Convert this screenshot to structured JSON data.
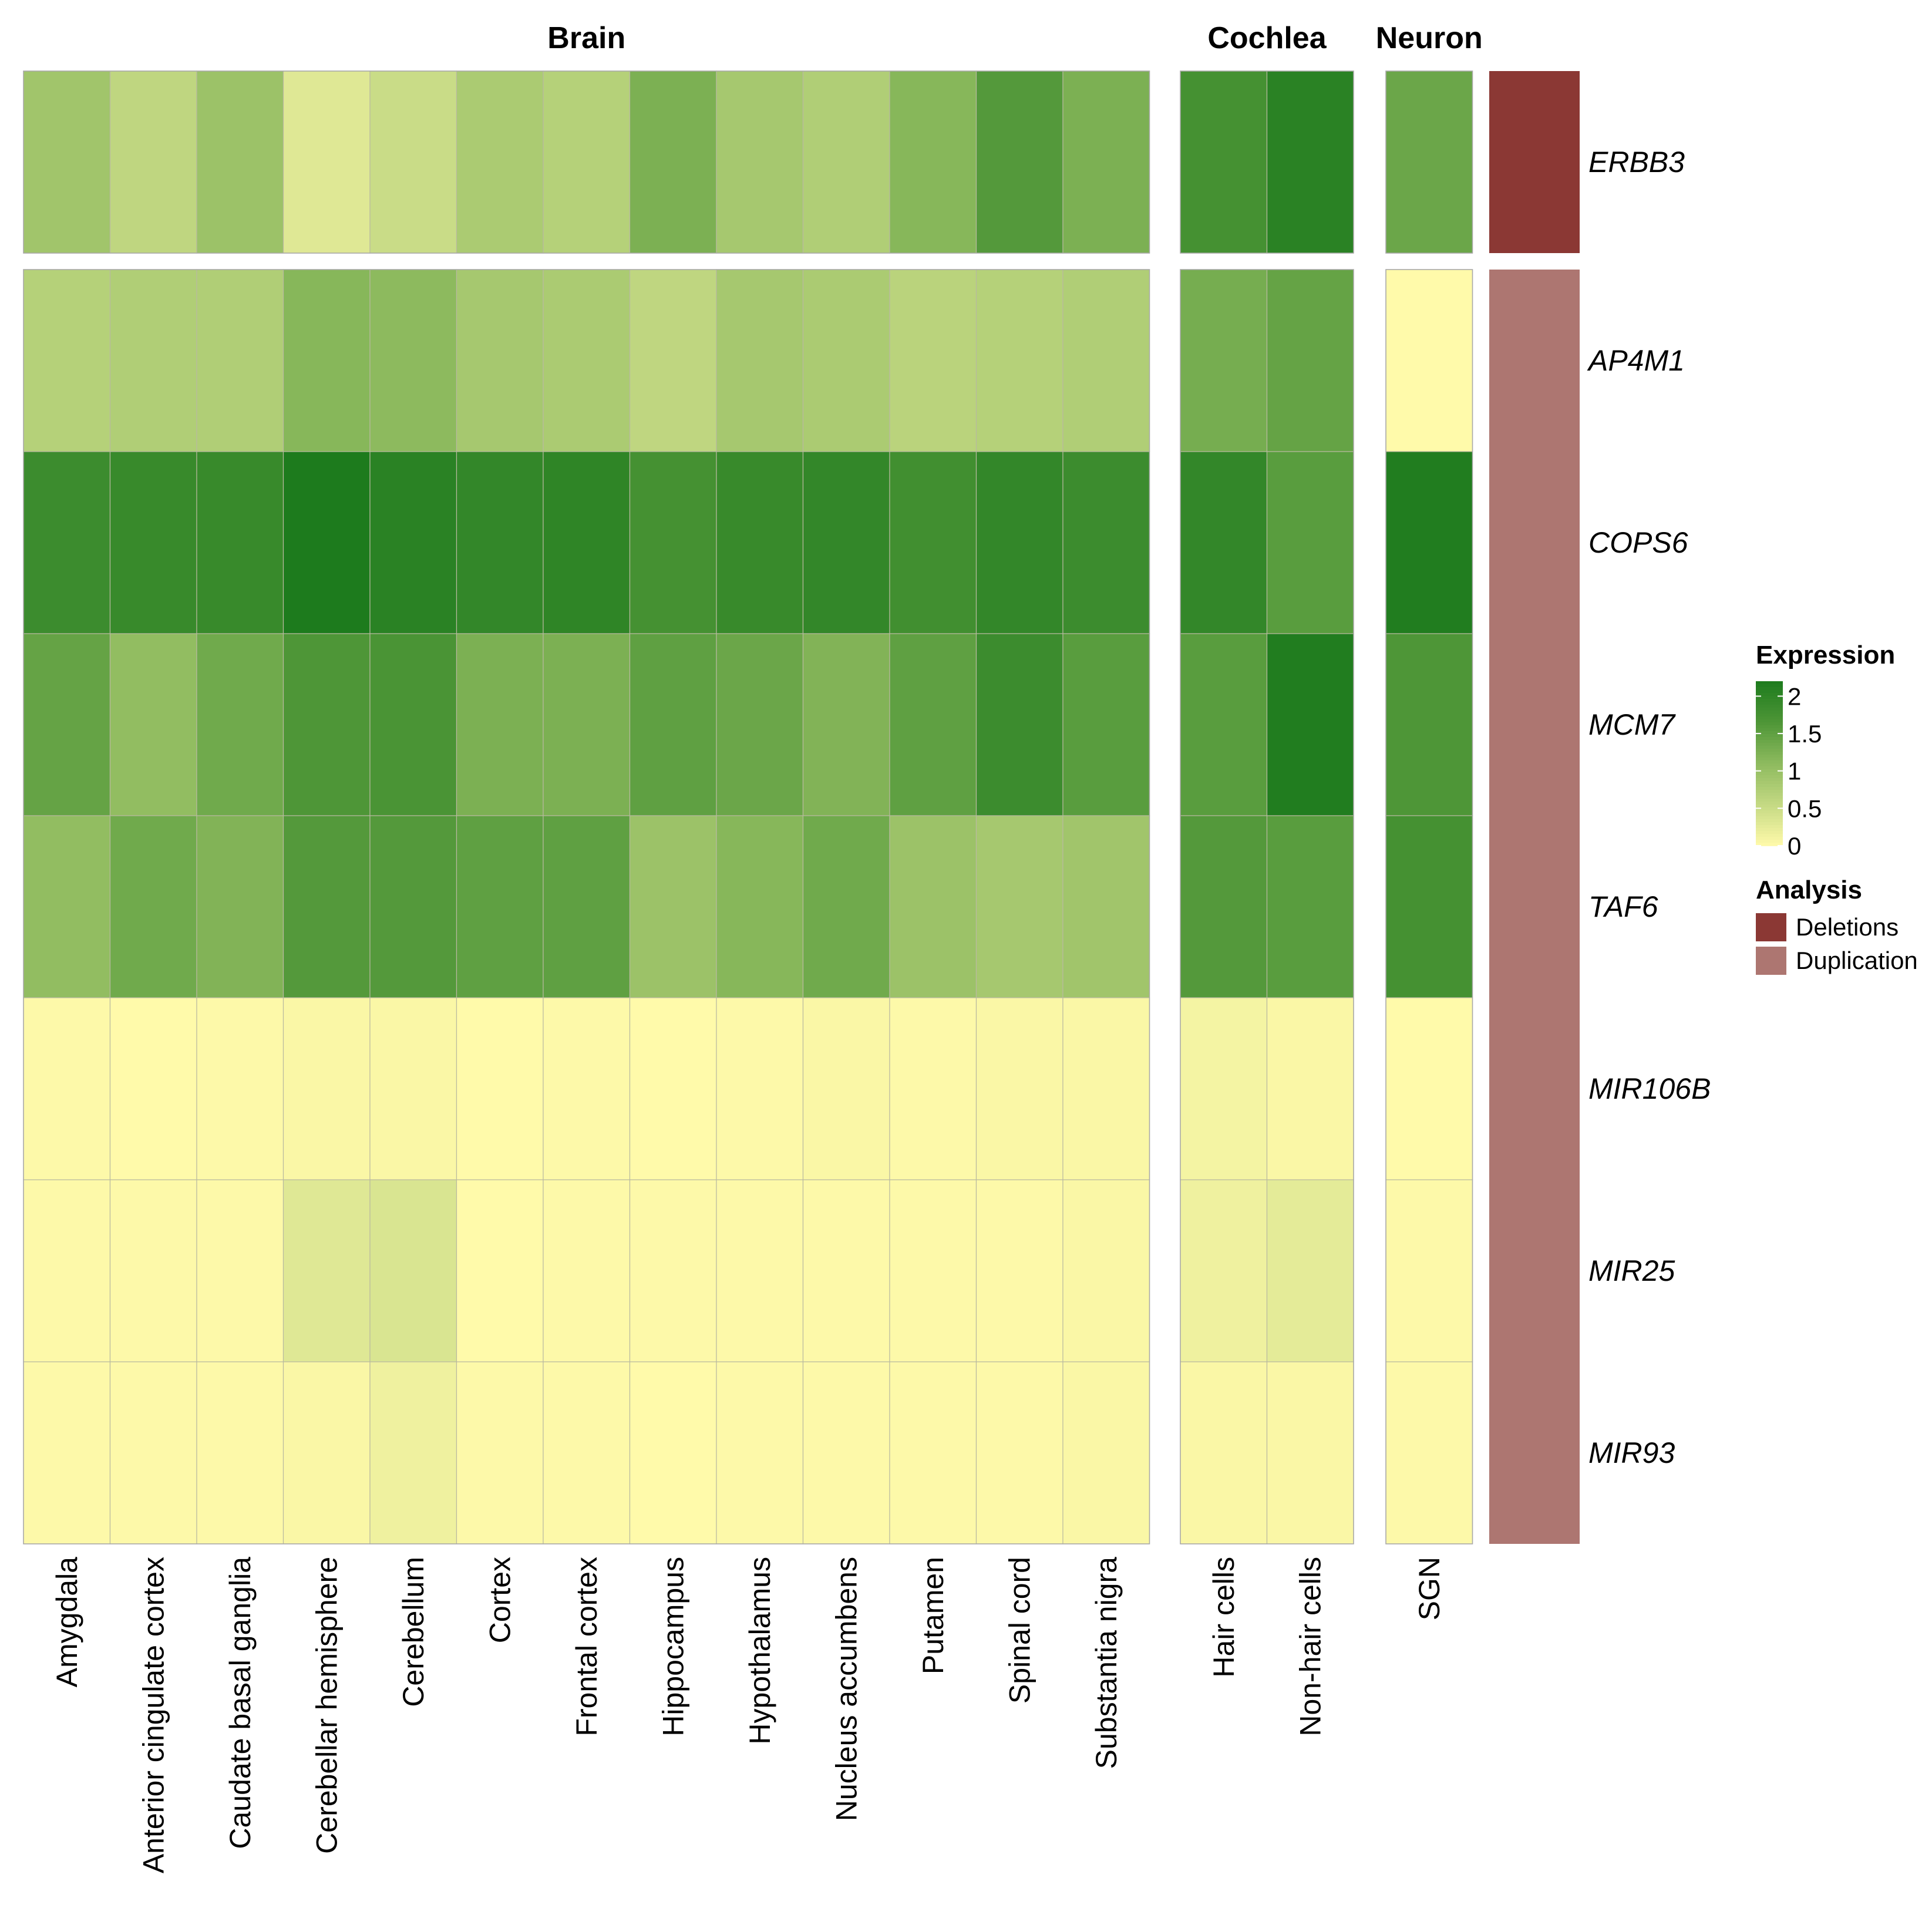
{
  "chart_data": {
    "type": "heatmap",
    "groups": [
      {
        "name": "Brain",
        "columns": [
          "Amygdala",
          "Anterior cingulate cortex",
          "Caudate basal ganglia",
          "Cerebellar hemisphere",
          "Cerebellum",
          "Cortex",
          "Frontal cortex",
          "Hippocampus",
          "Hypothalamus",
          "Nucleus accumbens",
          "Putamen",
          "Spinal cord",
          "Substantia nigra"
        ]
      },
      {
        "name": "Cochlea",
        "columns": [
          "Hair cells",
          "Non-hair cells"
        ]
      },
      {
        "name": "Neuron",
        "columns": [
          "SGN"
        ]
      }
    ],
    "row_blocks": [
      {
        "analysis": "Deletions",
        "rows": [
          "ERBB3"
        ]
      },
      {
        "analysis": "Duplication",
        "rows": [
          "AP4M1",
          "COPS6",
          "MCM7",
          "TAF6",
          "MIR106B",
          "MIR25",
          "MIR93"
        ]
      }
    ],
    "values": {
      "ERBB3": [
        0.9,
        0.6,
        0.95,
        0.3,
        0.5,
        0.8,
        0.7,
        1.25,
        0.85,
        0.75,
        1.15,
        1.6,
        1.25,
        1.75,
        2.05,
        1.4
      ],
      "AP4M1": [
        0.7,
        0.75,
        0.75,
        1.15,
        1.1,
        0.85,
        0.8,
        0.6,
        0.85,
        0.8,
        0.65,
        0.7,
        0.75,
        1.3,
        1.45,
        0.0
      ],
      "COPS6": [
        1.85,
        1.9,
        1.9,
        2.2,
        2.05,
        1.95,
        2.0,
        1.75,
        1.9,
        1.95,
        1.8,
        1.95,
        1.85,
        1.95,
        1.55,
        2.15
      ],
      "MCM7": [
        1.45,
        1.05,
        1.35,
        1.65,
        1.7,
        1.25,
        1.25,
        1.5,
        1.4,
        1.2,
        1.5,
        1.85,
        1.55,
        1.55,
        2.15,
        1.65
      ],
      "TAF6": [
        1.05,
        1.35,
        1.2,
        1.6,
        1.6,
        1.5,
        1.5,
        0.95,
        1.15,
        1.35,
        0.95,
        0.85,
        0.9,
        1.6,
        1.55,
        1.75
      ],
      "MIR106B": [
        0.02,
        0.0,
        0.02,
        0.05,
        0.05,
        0.0,
        0.02,
        0.0,
        0.02,
        0.05,
        0.02,
        0.05,
        0.05,
        0.1,
        0.05,
        0.0
      ],
      "MIR25": [
        0.02,
        0.02,
        0.02,
        0.3,
        0.35,
        0.0,
        0.02,
        0.02,
        0.02,
        0.02,
        0.02,
        0.02,
        0.05,
        0.15,
        0.25,
        0.02
      ],
      "MIR93": [
        0.02,
        0.02,
        0.02,
        0.05,
        0.15,
        0.02,
        0.02,
        0.0,
        0.02,
        0.02,
        0.02,
        0.02,
        0.05,
        0.05,
        0.05,
        0.02
      ]
    },
    "legend": {
      "expression": {
        "title": "Expression",
        "ticks": [
          "2",
          "1.5",
          "1",
          "0.5",
          "0"
        ],
        "range": [
          0,
          2.2
        ],
        "colors": [
          "#FFFAAA",
          "#C4D983",
          "#8DBA5E",
          "#4E9637",
          "#1D7B1D"
        ]
      },
      "analysis": {
        "title": "Analysis",
        "items": [
          {
            "label": "Deletions",
            "color": "#8B3834"
          },
          {
            "label": "Duplication",
            "color": "#AD7671"
          }
        ]
      }
    },
    "legend_position": "right"
  }
}
